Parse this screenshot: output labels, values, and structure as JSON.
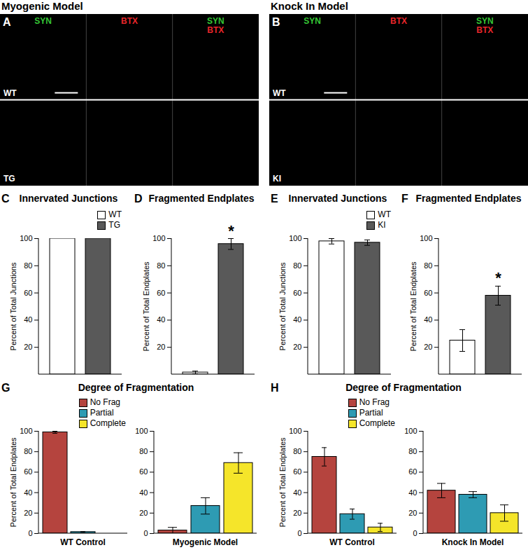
{
  "figure_headers": [
    "Myogenic Model",
    "Knock In Model"
  ],
  "image_panels": [
    {
      "panel": "A",
      "channels": [
        {
          "label": "SYN",
          "color": "#35c435"
        },
        {
          "label": "BTX",
          "color": "#e8262a"
        }
      ],
      "rows": [
        "WT",
        "TG"
      ]
    },
    {
      "panel": "B",
      "channels": [
        {
          "label": "SYN",
          "color": "#35c435"
        },
        {
          "label": "BTX",
          "color": "#e8262a"
        }
      ],
      "rows": [
        "WT",
        "KI"
      ]
    }
  ],
  "chart_data": [
    {
      "panel": "C",
      "type": "bar",
      "title": "Innervated Junctions",
      "categories": [
        "WT",
        "TG"
      ],
      "values": [
        100,
        100
      ],
      "colors": [
        "#ffffff",
        "#595959"
      ],
      "ylabel": "Percent of Total Junctions",
      "ylim": [
        0,
        100
      ],
      "yticks": [
        20,
        40,
        60,
        80,
        100
      ],
      "legend": "top-right"
    },
    {
      "panel": "D",
      "type": "bar",
      "title": "Fragmented Endplates",
      "categories": [
        "WT",
        "TG"
      ],
      "values": [
        1.5,
        96
      ],
      "errors": [
        1,
        4
      ],
      "colors": [
        "#ffffff",
        "#595959"
      ],
      "ylabel": "Percent of Total Endplates",
      "ylim": [
        0,
        100
      ],
      "yticks": [
        20,
        40,
        60,
        80,
        100
      ],
      "annotations": [
        {
          "category": "TG",
          "text": "*"
        }
      ]
    },
    {
      "panel": "E",
      "type": "bar",
      "title": "Innervated Junctions",
      "categories": [
        "WT",
        "KI"
      ],
      "values": [
        98,
        97
      ],
      "errors": [
        2,
        2
      ],
      "colors": [
        "#ffffff",
        "#595959"
      ],
      "ylabel": "Percent of Total Junctions",
      "ylim": [
        0,
        100
      ],
      "yticks": [
        20,
        40,
        60,
        80,
        100
      ],
      "legend": "top-right"
    },
    {
      "panel": "F",
      "type": "bar",
      "title": "Fragmented Endplates",
      "categories": [
        "WT",
        "KI"
      ],
      "values": [
        25,
        58
      ],
      "errors": [
        8,
        7
      ],
      "colors": [
        "#ffffff",
        "#595959"
      ],
      "ylabel": "Percent of Total Endplates",
      "ylim": [
        0,
        100
      ],
      "yticks": [
        20,
        40,
        60,
        80,
        100
      ],
      "annotations": [
        {
          "category": "KI",
          "text": "*"
        }
      ]
    },
    {
      "panel": "G",
      "type": "bar",
      "title": "Degree of Fragmentation",
      "categories": [
        "WT Control",
        "Myogenic Model"
      ],
      "series": [
        {
          "name": "No Frag",
          "color": "#b5443e",
          "values": [
            99,
            3
          ],
          "errors": [
            1,
            3
          ]
        },
        {
          "name": "Partial",
          "color": "#2e9bb3",
          "values": [
            1.5,
            27
          ],
          "errors": [
            0.5,
            8
          ]
        },
        {
          "name": "Complete",
          "color": "#f5e52a",
          "values": [
            0,
            69
          ],
          "errors": [
            0,
            10
          ]
        }
      ],
      "ylabel": "Percent of Total Endplates",
      "ylim": [
        0,
        100
      ],
      "yticks": [
        0,
        20,
        40,
        60,
        80,
        100
      ],
      "legend": "top-right"
    },
    {
      "panel": "H",
      "type": "bar",
      "title": "Degree of Fragmentation",
      "categories": [
        "WT Control",
        "Knock In Model"
      ],
      "series": [
        {
          "name": "No Frag",
          "color": "#b5443e",
          "values": [
            75,
            42
          ],
          "errors": [
            9,
            7
          ]
        },
        {
          "name": "Partial",
          "color": "#2e9bb3",
          "values": [
            19,
            38
          ],
          "errors": [
            5,
            3
          ]
        },
        {
          "name": "Complete",
          "color": "#f5e52a",
          "values": [
            6,
            20
          ],
          "errors": [
            4,
            8
          ]
        }
      ],
      "ylabel": "Percent of Total Endplates",
      "ylim": [
        0,
        100
      ],
      "yticks": [
        0,
        20,
        40,
        60,
        80,
        100
      ],
      "legend": "top-right"
    }
  ]
}
